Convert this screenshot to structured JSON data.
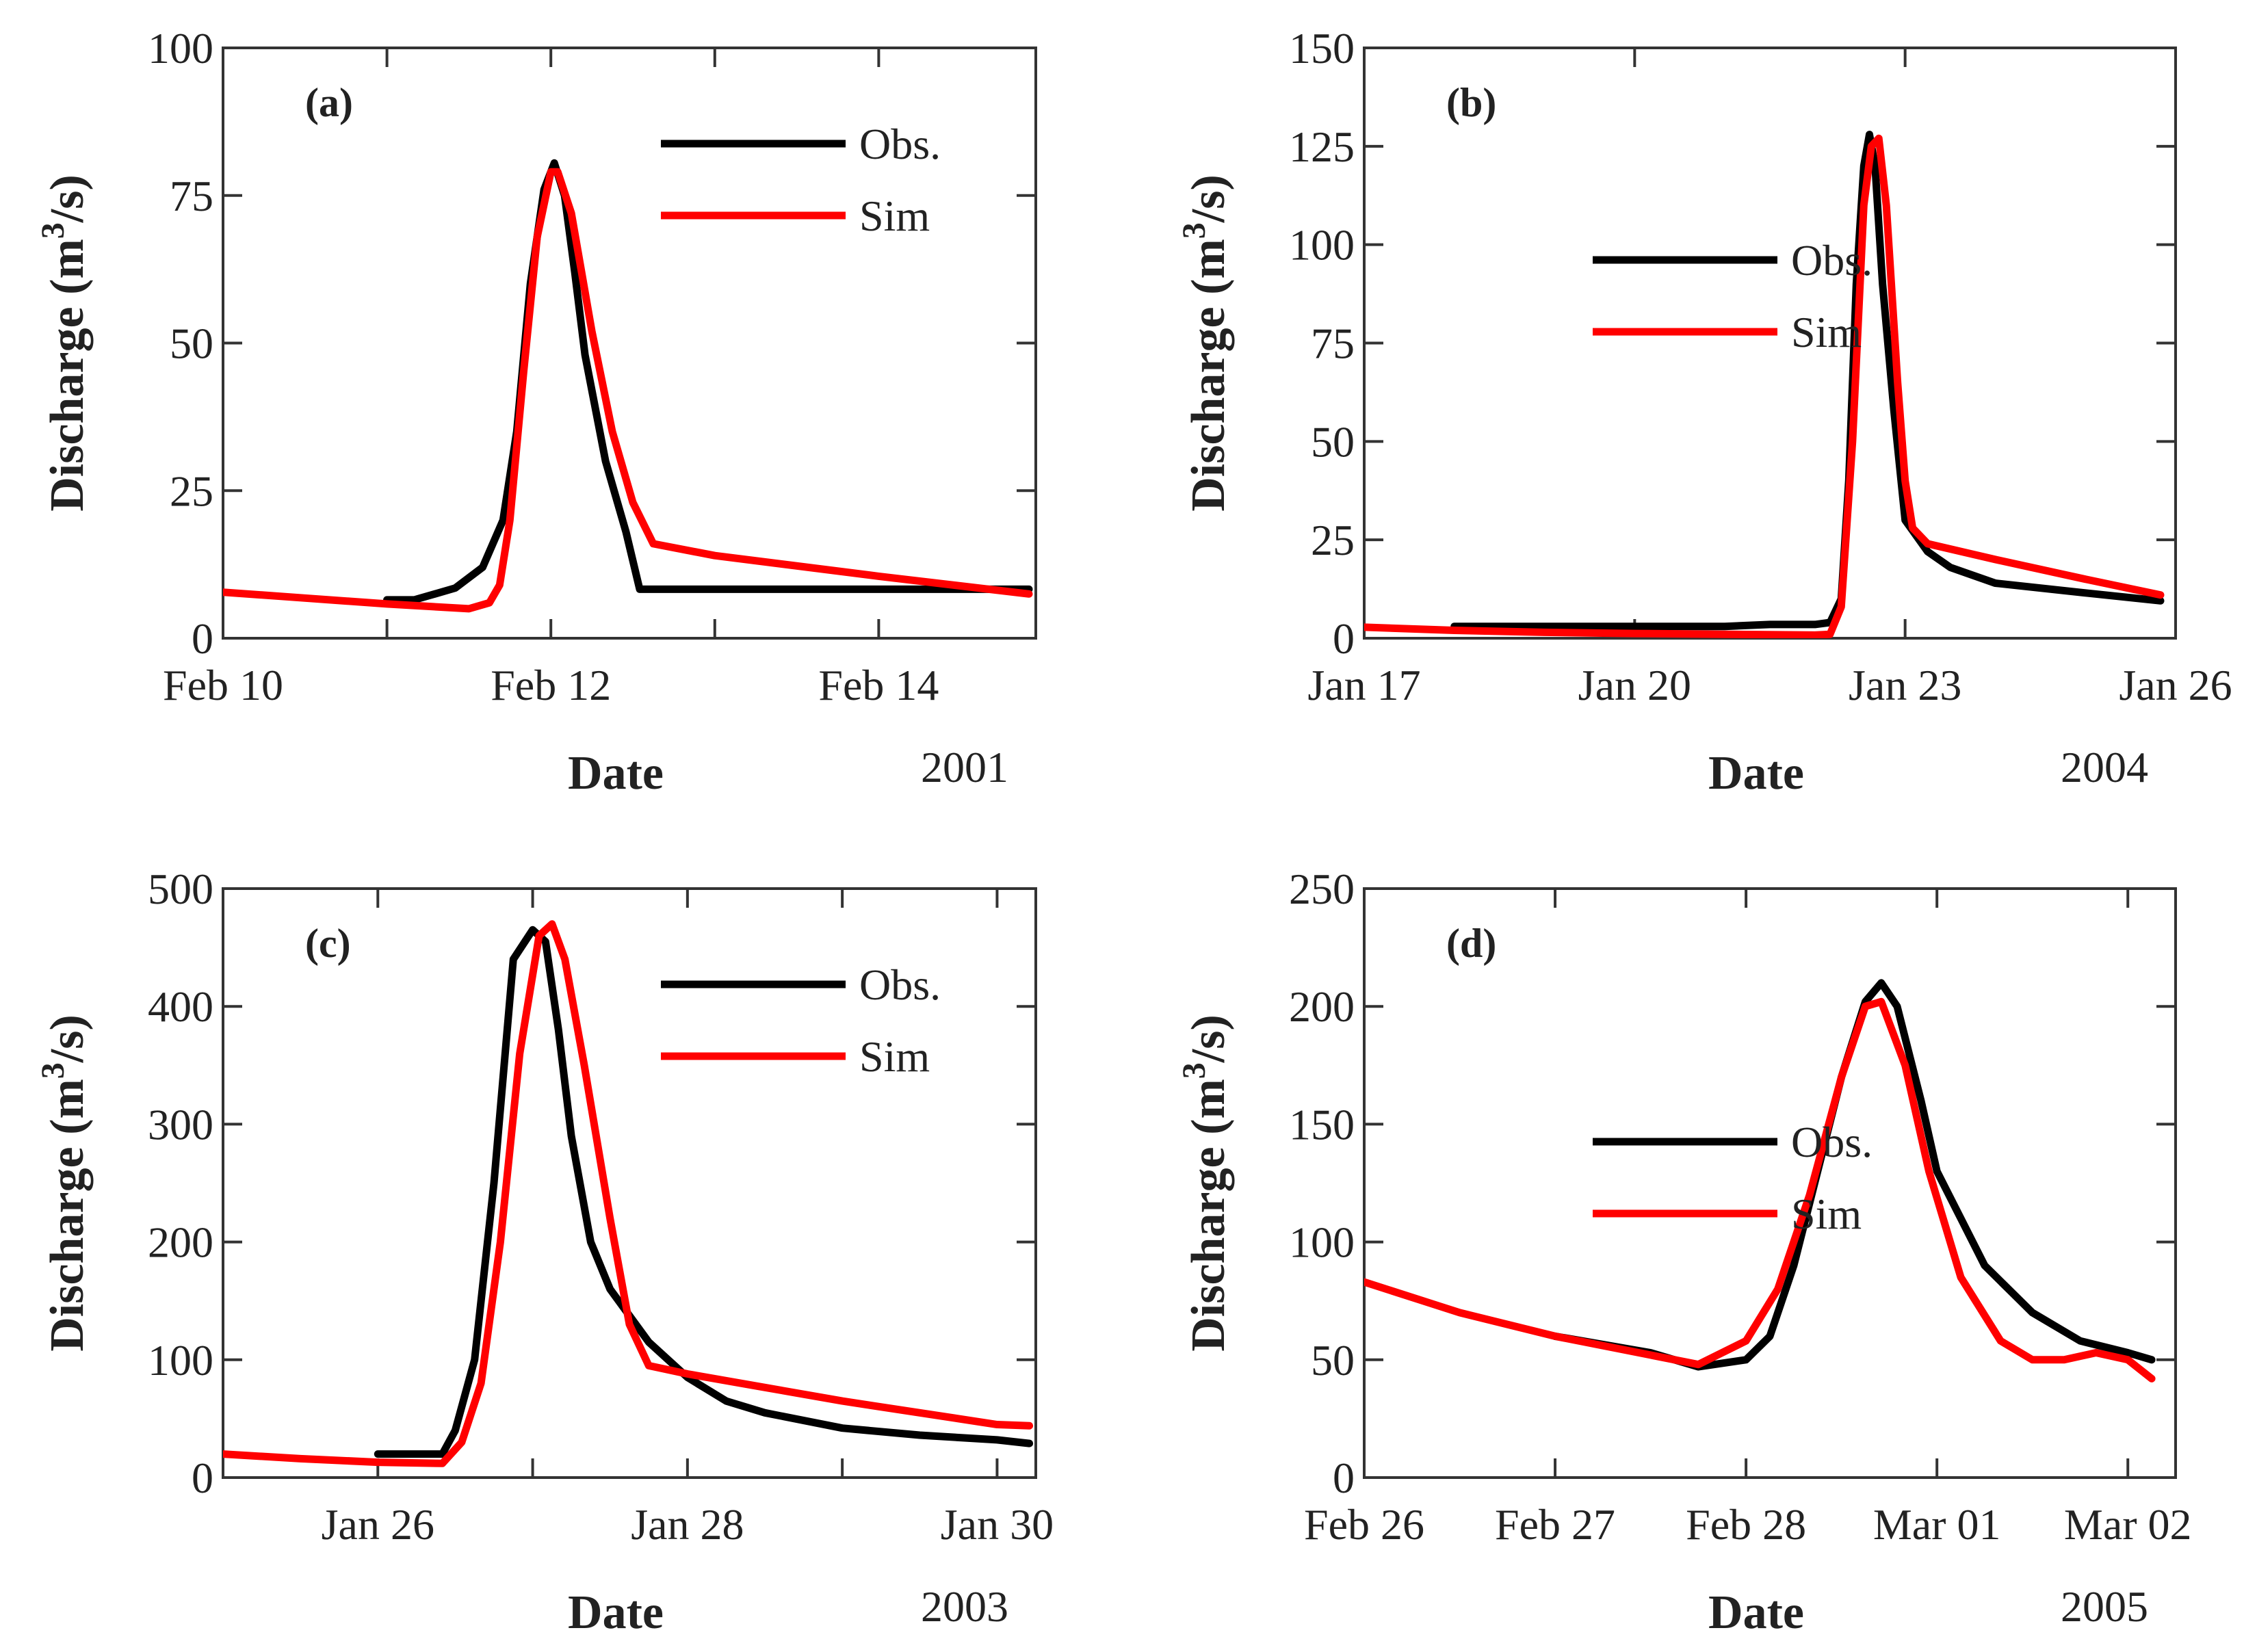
{
  "colors": {
    "observed": "#000000",
    "simulated": "#ff0000"
  },
  "chart_data": [
    {
      "type": "line",
      "panel_label": "(a)",
      "xlabel": "Date",
      "ylabel": "Discharge (m3/s)",
      "ylabel_main": "Discharge (m",
      "ylabel_sup": "3",
      "ylabel_end": "/s)",
      "year": "2001",
      "xlim": [
        "2001-02-10",
        "2001-02-14T23:00"
      ],
      "ylim": [
        0,
        100
      ],
      "yticks": [
        0,
        25,
        50,
        75,
        100
      ],
      "xticks": [
        {
          "x": "2001-02-10",
          "label": "Feb 10"
        },
        {
          "x": "2001-02-11",
          "label": ""
        },
        {
          "x": "2001-02-12",
          "label": "Feb 12"
        },
        {
          "x": "2001-02-13",
          "label": ""
        },
        {
          "x": "2001-02-14",
          "label": "Feb 14"
        }
      ],
      "legend": {
        "position": "top-right"
      },
      "series": [
        {
          "name": "Obs.",
          "color": "#000000",
          "points": [
            [
              "2001-02-11T00:00",
              6.5
            ],
            [
              "2001-02-11T04:00",
              6.5
            ],
            [
              "2001-02-11T07:00",
              7.5
            ],
            [
              "2001-02-11T10:00",
              8.5
            ],
            [
              "2001-02-11T14:00",
              12
            ],
            [
              "2001-02-11T17:00",
              20
            ],
            [
              "2001-02-11T19:00",
              35
            ],
            [
              "2001-02-11T21:00",
              60
            ],
            [
              "2001-02-11T23:00",
              76
            ],
            [
              "2001-02-12T00:30",
              80.5
            ],
            [
              "2001-02-12T02:00",
              75
            ],
            [
              "2001-02-12T03:30",
              62
            ],
            [
              "2001-02-12T05:00",
              48
            ],
            [
              "2001-02-12T08:00",
              30
            ],
            [
              "2001-02-12T11:00",
              18
            ],
            [
              "2001-02-12T13:00",
              8.3
            ],
            [
              "2001-02-13T00:00",
              8.3
            ],
            [
              "2001-02-14T00:00",
              8.3
            ],
            [
              "2001-02-14T22:00",
              8.3
            ]
          ]
        },
        {
          "name": "Sim",
          "color": "#ff0000",
          "points": [
            [
              "2001-02-10T00:00",
              7.8
            ],
            [
              "2001-02-10T12:00",
              6.8
            ],
            [
              "2001-02-11T00:00",
              5.8
            ],
            [
              "2001-02-11T12:00",
              5.0
            ],
            [
              "2001-02-11T15:00",
              6
            ],
            [
              "2001-02-11T16:30",
              9
            ],
            [
              "2001-02-11T18:00",
              20
            ],
            [
              "2001-02-11T20:00",
              45
            ],
            [
              "2001-02-11T22:00",
              68
            ],
            [
              "2001-02-12T00:00",
              79
            ],
            [
              "2001-02-12T01:00",
              79
            ],
            [
              "2001-02-12T03:00",
              72
            ],
            [
              "2001-02-12T06:00",
              52
            ],
            [
              "2001-02-12T09:00",
              35
            ],
            [
              "2001-02-12T12:00",
              23
            ],
            [
              "2001-02-12T15:00",
              16
            ],
            [
              "2001-02-13T00:00",
              14
            ],
            [
              "2001-02-14T00:00",
              10.5
            ],
            [
              "2001-02-14T22:00",
              7.5
            ]
          ]
        }
      ]
    },
    {
      "type": "line",
      "panel_label": "(b)",
      "xlabel": "Date",
      "ylabel": "Discharge (m3/s)",
      "ylabel_main": "Discharge (m",
      "ylabel_sup": "3",
      "ylabel_end": "/s)",
      "year": "2004",
      "xlim": [
        "2004-01-17",
        "2004-01-26"
      ],
      "ylim": [
        0,
        150
      ],
      "yticks": [
        0,
        25,
        50,
        75,
        100,
        125,
        150
      ],
      "xticks": [
        {
          "x": "2004-01-17",
          "label": "Jan 17"
        },
        {
          "x": "2004-01-20",
          "label": "Jan 20"
        },
        {
          "x": "2004-01-23",
          "label": "Jan 23"
        },
        {
          "x": "2004-01-26",
          "label": "Jan 26"
        }
      ],
      "legend": {
        "position": "top-left"
      },
      "series": [
        {
          "name": "Obs.",
          "color": "#000000",
          "points": [
            [
              "2004-01-18T00:00",
              3
            ],
            [
              "2004-01-19T00:00",
              3
            ],
            [
              "2004-01-20T00:00",
              3
            ],
            [
              "2004-01-21T00:00",
              3
            ],
            [
              "2004-01-21T12:00",
              3.5
            ],
            [
              "2004-01-22T00:00",
              3.5
            ],
            [
              "2004-01-22T04:00",
              4
            ],
            [
              "2004-01-22T07:00",
              10
            ],
            [
              "2004-01-22T09:00",
              40
            ],
            [
              "2004-01-22T11:00",
              90
            ],
            [
              "2004-01-22T13:00",
              120
            ],
            [
              "2004-01-22T14:30",
              128
            ],
            [
              "2004-01-22T16:00",
              120
            ],
            [
              "2004-01-22T18:00",
              90
            ],
            [
              "2004-01-22T21:00",
              58
            ],
            [
              "2004-01-23T00:00",
              30
            ],
            [
              "2004-01-23T06:00",
              22
            ],
            [
              "2004-01-23T12:00",
              18
            ],
            [
              "2004-01-24T00:00",
              14
            ],
            [
              "2004-01-25T00:00",
              11.5
            ],
            [
              "2004-01-25T20:00",
              9.5
            ]
          ]
        },
        {
          "name": "Sim",
          "color": "#ff0000",
          "points": [
            [
              "2004-01-17T00:00",
              2.8
            ],
            [
              "2004-01-18T00:00",
              2.0
            ],
            [
              "2004-01-19T00:00",
              1.5
            ],
            [
              "2004-01-20T00:00",
              1.2
            ],
            [
              "2004-01-21T00:00",
              1.0
            ],
            [
              "2004-01-22T00:00",
              0.8
            ],
            [
              "2004-01-22T04:00",
              1
            ],
            [
              "2004-01-22T07:00",
              8
            ],
            [
              "2004-01-22T10:00",
              50
            ],
            [
              "2004-01-22T13:00",
              110
            ],
            [
              "2004-01-22T15:00",
              125
            ],
            [
              "2004-01-22T17:00",
              127
            ],
            [
              "2004-01-22T19:00",
              110
            ],
            [
              "2004-01-22T22:00",
              65
            ],
            [
              "2004-01-23T00:00",
              40
            ],
            [
              "2004-01-23T02:00",
              28
            ],
            [
              "2004-01-23T06:00",
              24
            ],
            [
              "2004-01-24T00:00",
              20
            ],
            [
              "2004-01-25T00:00",
              15
            ],
            [
              "2004-01-25T20:00",
              11
            ]
          ]
        }
      ]
    },
    {
      "type": "line",
      "panel_label": "(c)",
      "xlabel": "Date",
      "ylabel": "Discharge (m3/s)",
      "ylabel_main": "Discharge (m",
      "ylabel_sup": "3",
      "ylabel_end": "/s)",
      "year": "2003",
      "xlim": [
        "2003-01-25",
        "2003-01-30T06:00"
      ],
      "ylim": [
        0,
        500
      ],
      "yticks": [
        0,
        100,
        200,
        300,
        400,
        500
      ],
      "xticks": [
        {
          "x": "2003-01-26",
          "label": "Jan 26"
        },
        {
          "x": "2003-01-27",
          "label": ""
        },
        {
          "x": "2003-01-28",
          "label": "Jan 28"
        },
        {
          "x": "2003-01-29",
          "label": ""
        },
        {
          "x": "2003-01-30",
          "label": "Jan 30"
        }
      ],
      "legend": {
        "position": "top-right"
      },
      "series": [
        {
          "name": "Obs.",
          "color": "#000000",
          "points": [
            [
              "2003-01-26T00:00",
              20
            ],
            [
              "2003-01-26T10:00",
              20
            ],
            [
              "2003-01-26T12:00",
              40
            ],
            [
              "2003-01-26T15:00",
              100
            ],
            [
              "2003-01-26T18:00",
              250
            ],
            [
              "2003-01-26T21:00",
              440
            ],
            [
              "2003-01-27T00:00",
              465
            ],
            [
              "2003-01-27T02:00",
              455
            ],
            [
              "2003-01-27T04:00",
              380
            ],
            [
              "2003-01-27T06:00",
              290
            ],
            [
              "2003-01-27T09:00",
              200
            ],
            [
              "2003-01-27T12:00",
              160
            ],
            [
              "2003-01-27T18:00",
              115
            ],
            [
              "2003-01-28T00:00",
              85
            ],
            [
              "2003-01-28T06:00",
              65
            ],
            [
              "2003-01-28T12:00",
              55
            ],
            [
              "2003-01-29T00:00",
              42
            ],
            [
              "2003-01-29T12:00",
              36
            ],
            [
              "2003-01-30T00:00",
              32
            ],
            [
              "2003-01-30T05:00",
              29
            ]
          ]
        },
        {
          "name": "Sim",
          "color": "#ff0000",
          "points": [
            [
              "2003-01-25T00:00",
              20
            ],
            [
              "2003-01-25T12:00",
              16
            ],
            [
              "2003-01-26T00:00",
              13
            ],
            [
              "2003-01-26T10:00",
              12
            ],
            [
              "2003-01-26T13:00",
              30
            ],
            [
              "2003-01-26T16:00",
              80
            ],
            [
              "2003-01-26T19:00",
              200
            ],
            [
              "2003-01-26T22:00",
              360
            ],
            [
              "2003-01-27T01:00",
              460
            ],
            [
              "2003-01-27T03:00",
              470
            ],
            [
              "2003-01-27T05:00",
              440
            ],
            [
              "2003-01-27T08:00",
              350
            ],
            [
              "2003-01-27T12:00",
              220
            ],
            [
              "2003-01-27T15:00",
              130
            ],
            [
              "2003-01-27T18:00",
              95
            ],
            [
              "2003-01-28T00:00",
              88
            ],
            [
              "2003-01-29T00:00",
              65
            ],
            [
              "2003-01-30T00:00",
              45
            ],
            [
              "2003-01-30T05:00",
              44
            ]
          ]
        }
      ]
    },
    {
      "type": "line",
      "panel_label": "(d)",
      "xlabel": "Date",
      "ylabel": "Discharge (m3/s)",
      "ylabel_main": "Discharge (m",
      "ylabel_sup": "3",
      "ylabel_end": "/s)",
      "year": "2005",
      "xlim": [
        "2005-02-26",
        "2005-03-02T06:00"
      ],
      "ylim": [
        0,
        250
      ],
      "yticks": [
        0,
        50,
        100,
        150,
        200,
        250
      ],
      "xticks": [
        {
          "x": "2005-02-26",
          "label": "Feb 26"
        },
        {
          "x": "2005-02-27",
          "label": "Feb 27"
        },
        {
          "x": "2005-02-28",
          "label": "Feb 28"
        },
        {
          "x": "2005-03-01",
          "label": "Mar 01"
        },
        {
          "x": "2005-03-02",
          "label": "Mar 02"
        }
      ],
      "legend": {
        "position": "center-left"
      },
      "series": [
        {
          "name": "Obs.",
          "color": "#000000",
          "points": [
            [
              "2005-02-27T00:00",
              60
            ],
            [
              "2005-02-27T12:00",
              53
            ],
            [
              "2005-02-27T18:00",
              47
            ],
            [
              "2005-02-28T00:00",
              50
            ],
            [
              "2005-02-28T03:00",
              60
            ],
            [
              "2005-02-28T06:00",
              90
            ],
            [
              "2005-02-28T09:00",
              130
            ],
            [
              "2005-02-28T12:00",
              170
            ],
            [
              "2005-02-28T15:00",
              202
            ],
            [
              "2005-02-28T17:00",
              210
            ],
            [
              "2005-02-28T19:00",
              200
            ],
            [
              "2005-02-28T22:00",
              160
            ],
            [
              "2005-03-01T00:00",
              130
            ],
            [
              "2005-03-01T03:00",
              110
            ],
            [
              "2005-03-01T06:00",
              90
            ],
            [
              "2005-03-01T12:00",
              70
            ],
            [
              "2005-03-01T18:00",
              58
            ],
            [
              "2005-03-02T00:00",
              53
            ],
            [
              "2005-03-02T03:00",
              50
            ]
          ]
        },
        {
          "name": "Sim",
          "color": "#ff0000",
          "points": [
            [
              "2005-02-26T00:00",
              83
            ],
            [
              "2005-02-26T12:00",
              70
            ],
            [
              "2005-02-27T00:00",
              60
            ],
            [
              "2005-02-27T12:00",
              52
            ],
            [
              "2005-02-27T18:00",
              48
            ],
            [
              "2005-02-28T00:00",
              58
            ],
            [
              "2005-02-28T04:00",
              80
            ],
            [
              "2005-02-28T08:00",
              120
            ],
            [
              "2005-02-28T12:00",
              170
            ],
            [
              "2005-02-28T15:00",
              200
            ],
            [
              "2005-02-28T17:00",
              202
            ],
            [
              "2005-02-28T20:00",
              175
            ],
            [
              "2005-02-28T23:00",
              130
            ],
            [
              "2005-03-01T03:00",
              85
            ],
            [
              "2005-03-01T08:00",
              58
            ],
            [
              "2005-03-01T12:00",
              50
            ],
            [
              "2005-03-01T16:00",
              50
            ],
            [
              "2005-03-01T20:00",
              53
            ],
            [
              "2005-03-02T00:00",
              50
            ],
            [
              "2005-03-02T03:00",
              42
            ]
          ]
        }
      ]
    }
  ]
}
